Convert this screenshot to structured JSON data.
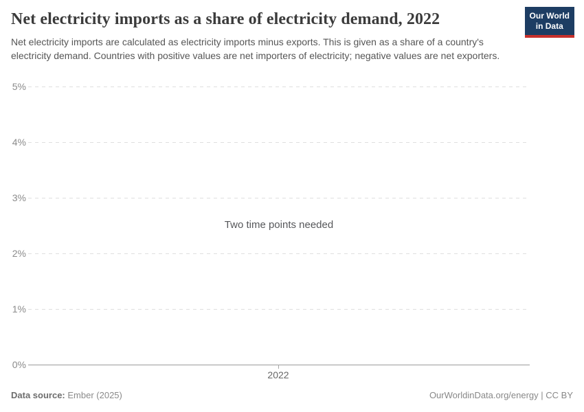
{
  "header": {
    "title": "Net electricity imports as a share of electricity demand, 2022",
    "subtitle": "Net electricity imports are calculated as electricity imports minus exports. This is given as a share of a country's electricity demand. Countries with positive values are net importers of electricity; negative values are net exporters.",
    "logo": {
      "line1": "Our World",
      "line2": "in Data",
      "bg_color": "#1d3d63",
      "stripe_color": "#c7302b"
    }
  },
  "chart": {
    "message": "Two time points needed",
    "y_axis": {
      "tick_labels": [
        "5%",
        "4%",
        "3%",
        "2%",
        "1%",
        "0%"
      ]
    },
    "x_axis": {
      "tick_label": "2022"
    }
  },
  "chart_data": {
    "type": "line",
    "title": "Net electricity imports as a share of electricity demand, 2022",
    "series": [],
    "x_ticks": [
      "2022"
    ],
    "y_tick_labels": [
      "0%",
      "1%",
      "2%",
      "3%",
      "4%",
      "5%"
    ],
    "ylim": [
      0,
      5
    ],
    "xlabel": "",
    "ylabel": "",
    "grid": "horizontal-dashed",
    "legend": "none",
    "annotation": "Two time points needed"
  },
  "footer": {
    "source_label": "Data source:",
    "source_value": "Ember (2025)",
    "right": "OurWorldinData.org/energy | CC BY"
  },
  "colors": {
    "title": "#3b3b3b",
    "subtitle": "#555555",
    "gridline": "#dedede",
    "axis_line": "#9a9a9a",
    "tick_label": "#8b8b8b",
    "message": "#56575a"
  }
}
